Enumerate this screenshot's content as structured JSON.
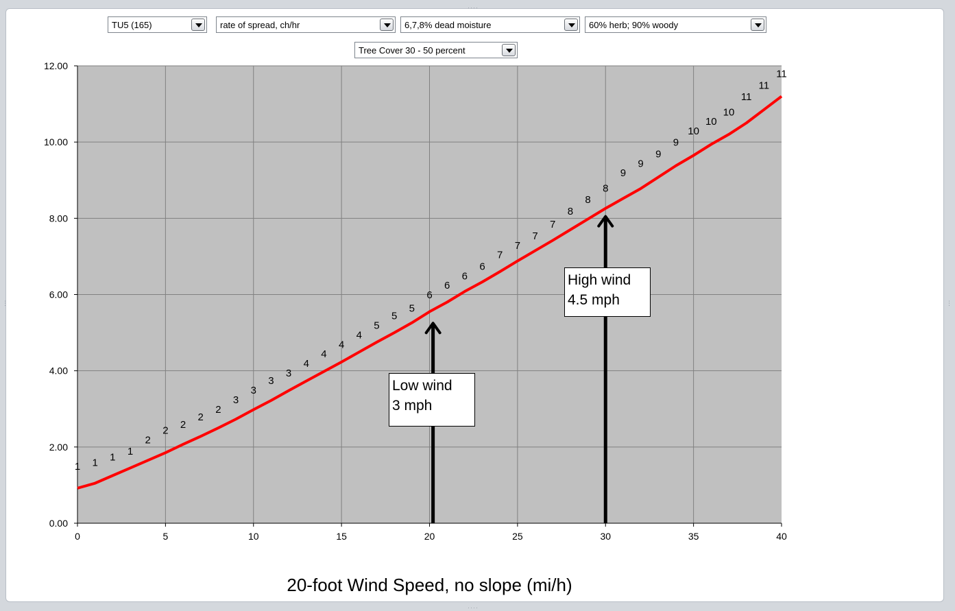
{
  "dropdowns": {
    "fuel_model": "TU5 (165)",
    "output_var": "rate of spread, ch/hr",
    "dead_moisture": "6,7,8% dead moisture",
    "live_moisture": "60% herb; 90% woody",
    "tree_cover": "Tree Cover 30 - 50 percent"
  },
  "annotations": {
    "low_wind": {
      "line1": "Low wind",
      "line2": "3 mph",
      "x": 20.2,
      "y_tip": 5.5
    },
    "high_wind": {
      "line1": "High wind",
      "line2": "4.5 mph",
      "x": 30.0,
      "y_tip": 8.3
    }
  },
  "colors": {
    "plot_bg": "#c0c0c0",
    "series_line": "#ff0000",
    "grid": "#808080",
    "arrow": "#000000"
  },
  "chart_data": {
    "type": "line",
    "xlabel": "20-foot Wind Speed, no slope (mi/h)",
    "ylabel": "",
    "xlim": [
      0,
      40
    ],
    "ylim": [
      0,
      12
    ],
    "xticks": [
      "0",
      "5",
      "10",
      "15",
      "20",
      "25",
      "30",
      "35",
      "40"
    ],
    "yticks": [
      "0.00",
      "2.00",
      "4.00",
      "6.00",
      "8.00",
      "10.00",
      "12.00"
    ],
    "grid": true,
    "x": [
      0,
      1,
      2,
      3,
      4,
      5,
      6,
      7,
      8,
      9,
      10,
      11,
      12,
      13,
      14,
      15,
      16,
      17,
      18,
      19,
      20,
      21,
      22,
      23,
      24,
      25,
      26,
      27,
      28,
      29,
      30,
      31,
      32,
      33,
      34,
      35,
      36,
      37,
      38,
      39,
      40
    ],
    "series": [
      {
        "values": [
          0.92,
          1.05,
          1.25,
          1.45,
          1.65,
          1.85,
          2.07,
          2.28,
          2.5,
          2.73,
          2.98,
          3.22,
          3.48,
          3.73,
          3.98,
          4.23,
          4.49,
          4.75,
          5.0,
          5.26,
          5.55,
          5.8,
          6.08,
          6.33,
          6.6,
          6.88,
          7.15,
          7.42,
          7.7,
          7.98,
          8.26,
          8.52,
          8.78,
          9.08,
          9.38,
          9.65,
          9.94,
          10.2,
          10.5,
          10.85,
          11.2
        ]
      }
    ],
    "point_labels": [
      "1",
      "1",
      "1",
      "1",
      "2",
      "2",
      "2",
      "2",
      "2",
      "3",
      "3",
      "3",
      "3",
      "4",
      "4",
      "4",
      "4",
      "5",
      "5",
      "5",
      "6",
      "6",
      "6",
      "6",
      "7",
      "7",
      "7",
      "7",
      "8",
      "8",
      "8",
      "9",
      "9",
      "9",
      "9",
      "10",
      "10",
      "10",
      "11",
      "11",
      "11"
    ],
    "point_label_y": [
      1.4,
      1.5,
      1.65,
      1.8,
      2.1,
      2.35,
      2.5,
      2.7,
      2.9,
      3.15,
      3.4,
      3.65,
      3.85,
      4.1,
      4.35,
      4.6,
      4.85,
      5.1,
      5.35,
      5.55,
      5.9,
      6.15,
      6.4,
      6.65,
      6.95,
      7.2,
      7.45,
      7.75,
      8.1,
      8.4,
      8.7,
      9.1,
      9.35,
      9.6,
      9.9,
      10.2,
      10.45,
      10.7,
      11.1,
      11.4,
      11.7
    ]
  }
}
